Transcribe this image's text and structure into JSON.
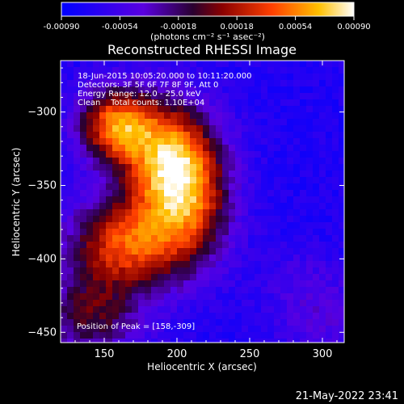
{
  "chart_data": {
    "type": "heatmap",
    "title": "Reconstructed RHESSI Image",
    "xlabel": "Heliocentric X (arcsec)",
    "ylabel": "Heliocentric Y (arcsec)",
    "x_ticks": [
      150,
      200,
      250,
      300
    ],
    "y_ticks": [
      -300,
      -350,
      -400,
      -450
    ],
    "xlim": [
      120,
      315
    ],
    "ylim": [
      -457,
      -265
    ],
    "colorbar": {
      "ticks": [
        "-0.00090",
        "-0.00054",
        "-0.00018",
        "0.00018",
        "0.00054",
        "0.00090"
      ],
      "range": [
        -0.0009,
        0.0009
      ],
      "units_label": "(photons cm⁻² s⁻¹ asec⁻²)"
    },
    "annotations": [
      "18-Jun-2015 10:05:20.000 to 10:11:20.000",
      "Detectors: 3F 5F 6F 7F 8F 9F, Att 0",
      "Energy Range: 12.0 - 25.0 keV",
      "Clean    Total counts: 1.10E+04"
    ],
    "peak_label": "Position of Peak = [158,-309]",
    "peak": [
      158,
      -309
    ],
    "timestamp": "21-May-2022 23:41"
  }
}
